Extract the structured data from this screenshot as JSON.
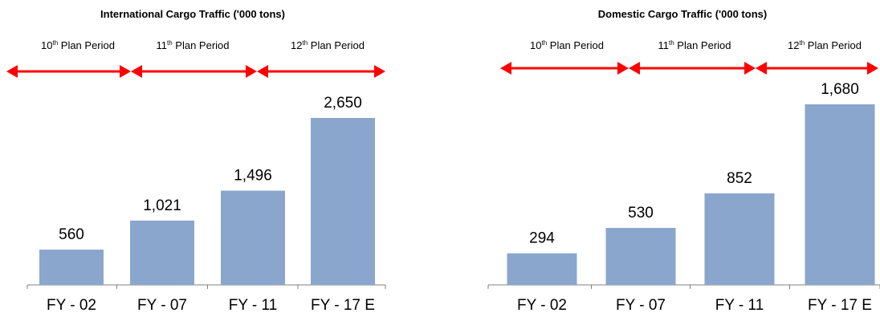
{
  "chart_data": [
    {
      "type": "bar",
      "title": "International Cargo Traffic ('000 tons)",
      "categories": [
        "FY - 02",
        "FY - 07",
        "FY - 11",
        "FY - 17 E"
      ],
      "values": [
        560,
        1021,
        1496,
        2650
      ],
      "value_labels": [
        "560",
        "1,021",
        "1,496",
        "2,650"
      ],
      "periods": [
        {
          "num": "10",
          "sup": "th",
          "text": " Plan Period"
        },
        {
          "num": "11",
          "sup": "th",
          "text": " Plan Period"
        },
        {
          "num": "12",
          "sup": "th",
          "text": " Plan Period"
        }
      ],
      "bar_color": "#8aa6cd",
      "arrow_color": "#ff0000",
      "grid": false
    },
    {
      "type": "bar",
      "title": "Domestic Cargo Traffic ('000 tons)",
      "categories": [
        "FY - 02",
        "FY - 07",
        "FY - 11",
        "FY - 17 E"
      ],
      "values": [
        294,
        530,
        852,
        1680
      ],
      "value_labels": [
        "294",
        "530",
        "852",
        "1,680"
      ],
      "periods": [
        {
          "num": "10",
          "sup": "th",
          "text": " Plan Period"
        },
        {
          "num": "11",
          "sup": "th",
          "text": " Plan Period"
        },
        {
          "num": "12",
          "sup": "th",
          "text": " Plan Period"
        }
      ],
      "bar_color": "#8aa6cd",
      "arrow_color": "#ff0000",
      "grid": false
    }
  ]
}
